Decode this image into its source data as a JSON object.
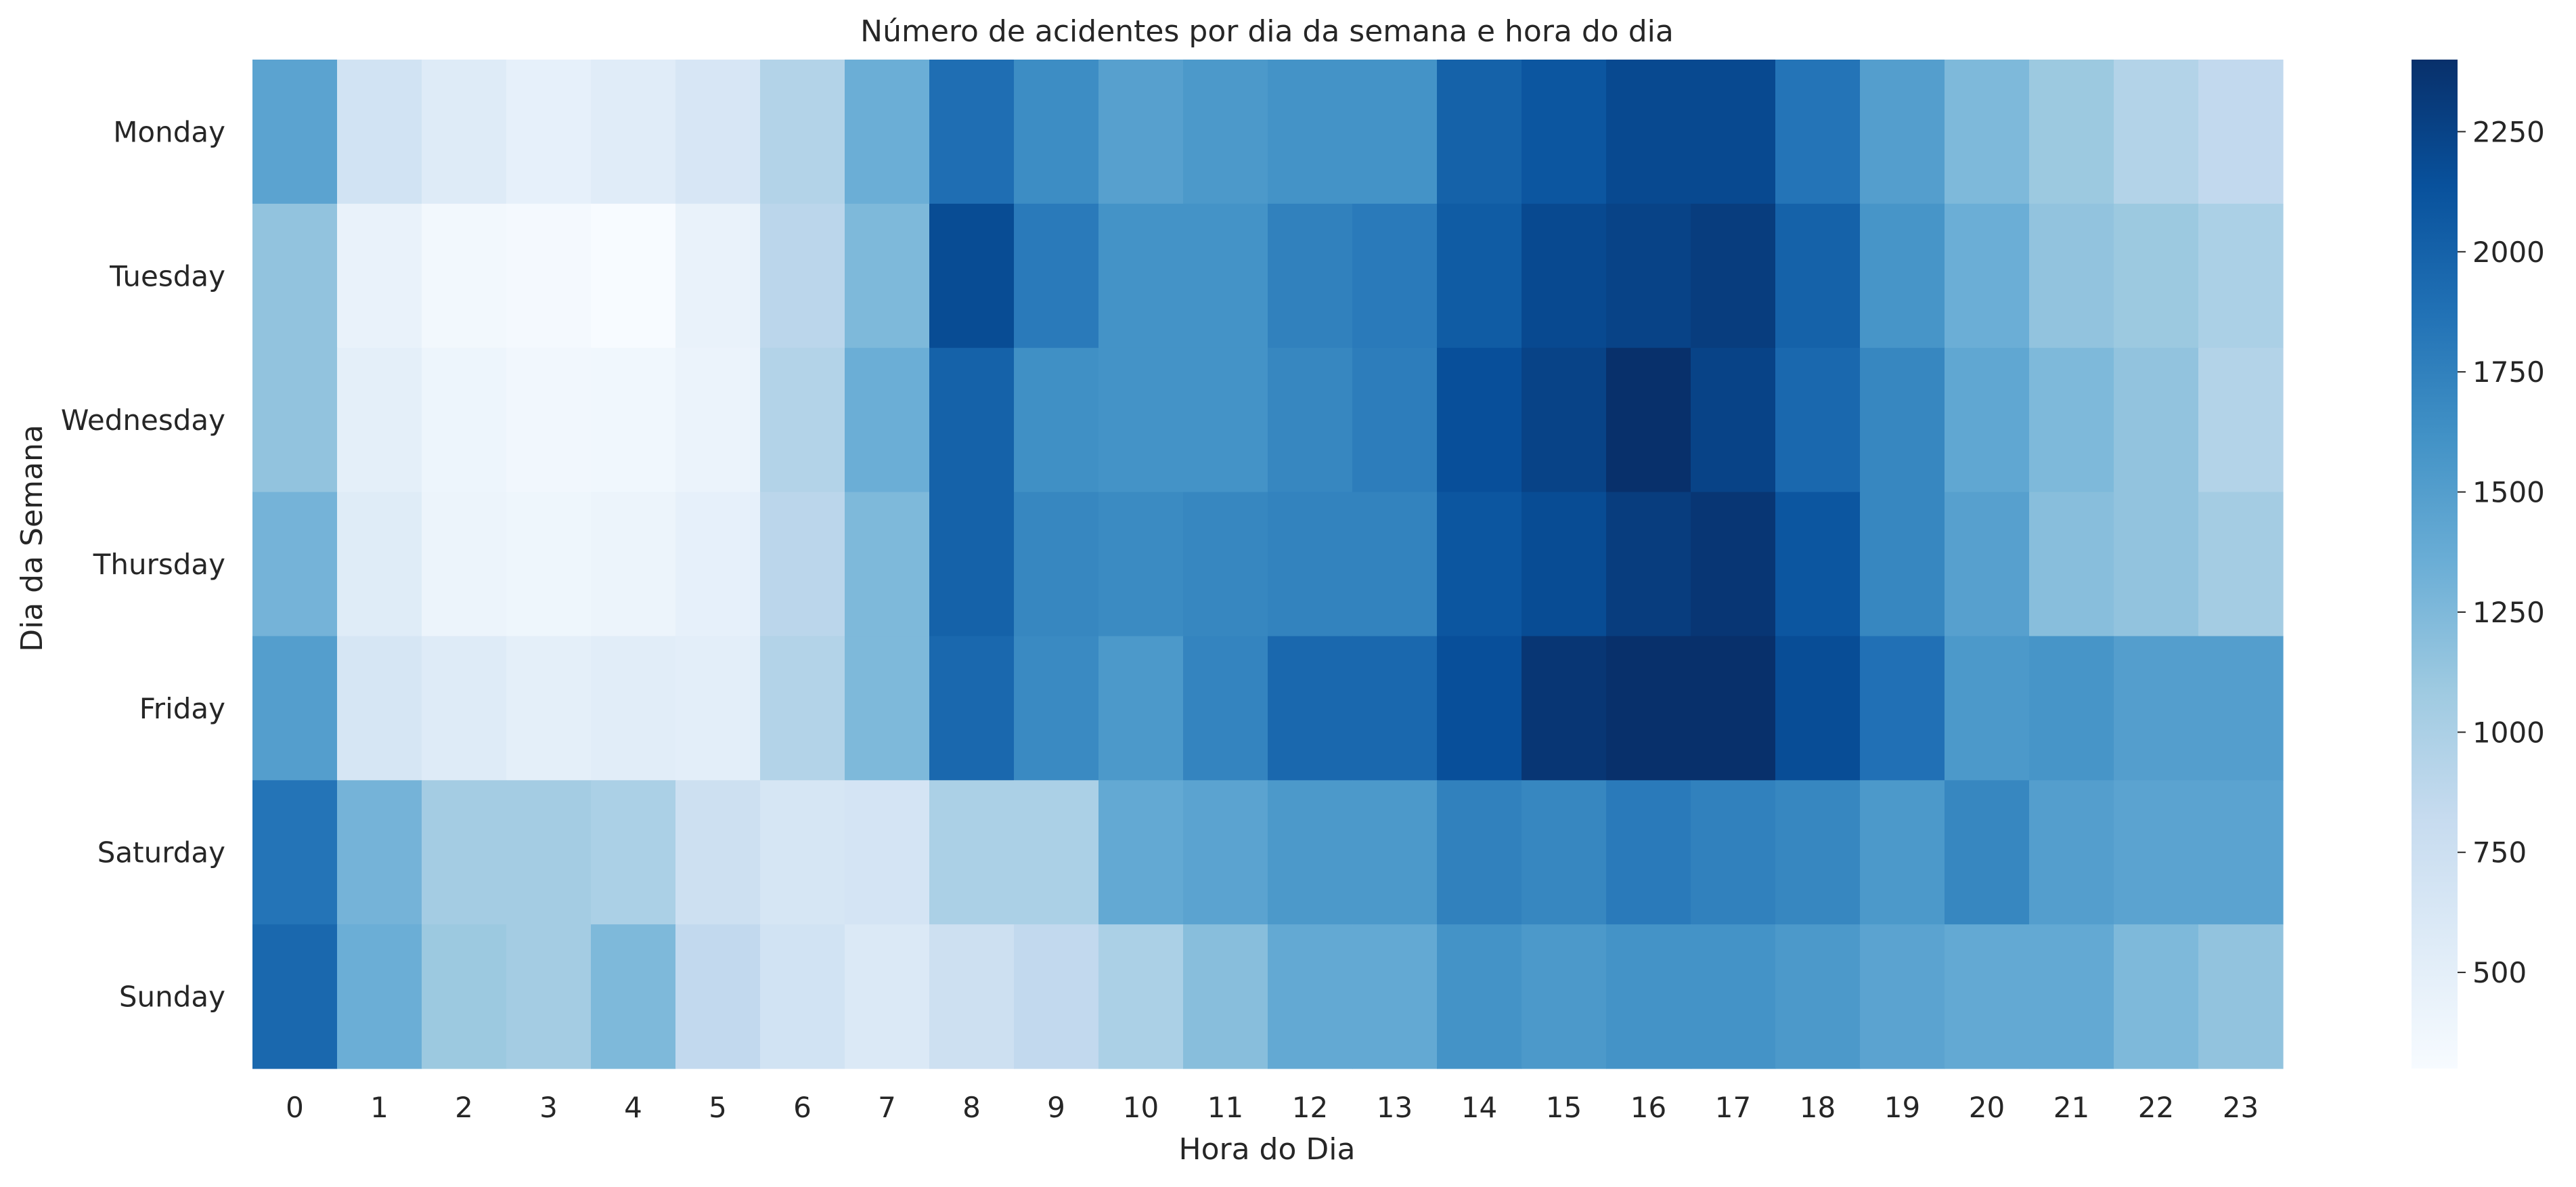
{
  "chart_data": {
    "type": "heatmap",
    "title": "Número de acidentes por dia da semana e hora do dia",
    "xlabel": "Hora do Dia",
    "ylabel": "Dia da Semana",
    "x_categories": [
      "0",
      "1",
      "2",
      "3",
      "4",
      "5",
      "6",
      "7",
      "8",
      "9",
      "10",
      "11",
      "12",
      "13",
      "14",
      "15",
      "16",
      "17",
      "18",
      "19",
      "20",
      "21",
      "22",
      "23"
    ],
    "y_categories": [
      "Monday",
      "Tuesday",
      "Wednesday",
      "Thursday",
      "Friday",
      "Saturday",
      "Sunday"
    ],
    "values": [
      [
        1450,
        700,
        560,
        480,
        540,
        640,
        950,
        1350,
        1900,
        1650,
        1480,
        1550,
        1600,
        1600,
        2000,
        2100,
        2200,
        2200,
        1850,
        1500,
        1250,
        1100,
        950,
        850
      ],
      [
        1150,
        450,
        350,
        330,
        300,
        450,
        900,
        1250,
        2180,
        1800,
        1600,
        1600,
        1750,
        1800,
        2050,
        2200,
        2250,
        2300,
        2000,
        1580,
        1350,
        1150,
        1100,
        1000
      ],
      [
        1150,
        500,
        400,
        360,
        370,
        430,
        950,
        1350,
        2000,
        1630,
        1600,
        1600,
        1700,
        1780,
        2150,
        2250,
        2400,
        2250,
        1950,
        1700,
        1420,
        1250,
        1150,
        950
      ],
      [
        1300,
        550,
        420,
        390,
        420,
        480,
        900,
        1250,
        2000,
        1700,
        1670,
        1700,
        1730,
        1730,
        2100,
        2180,
        2300,
        2350,
        2100,
        1700,
        1480,
        1200,
        1150,
        1050
      ],
      [
        1500,
        650,
        560,
        500,
        530,
        510,
        950,
        1250,
        1950,
        1680,
        1550,
        1720,
        1950,
        1950,
        2150,
        2350,
        2400,
        2420,
        2170,
        1880,
        1550,
        1580,
        1500,
        1500
      ],
      [
        1850,
        1300,
        1050,
        1050,
        1000,
        750,
        650,
        670,
        1000,
        1000,
        1400,
        1450,
        1550,
        1550,
        1750,
        1700,
        1800,
        1750,
        1700,
        1550,
        1700,
        1500,
        1450,
        1450
      ],
      [
        1950,
        1350,
        1100,
        1050,
        1250,
        850,
        700,
        600,
        750,
        850,
        1000,
        1200,
        1400,
        1400,
        1600,
        1550,
        1600,
        1600,
        1550,
        1450,
        1400,
        1400,
        1250,
        1150
      ]
    ],
    "colorbar": {
      "min": 300,
      "max": 2400,
      "ticks": [
        500,
        750,
        1000,
        1250,
        1500,
        1750,
        2000,
        2250
      ],
      "colormap": "Blues"
    },
    "grid": false
  }
}
